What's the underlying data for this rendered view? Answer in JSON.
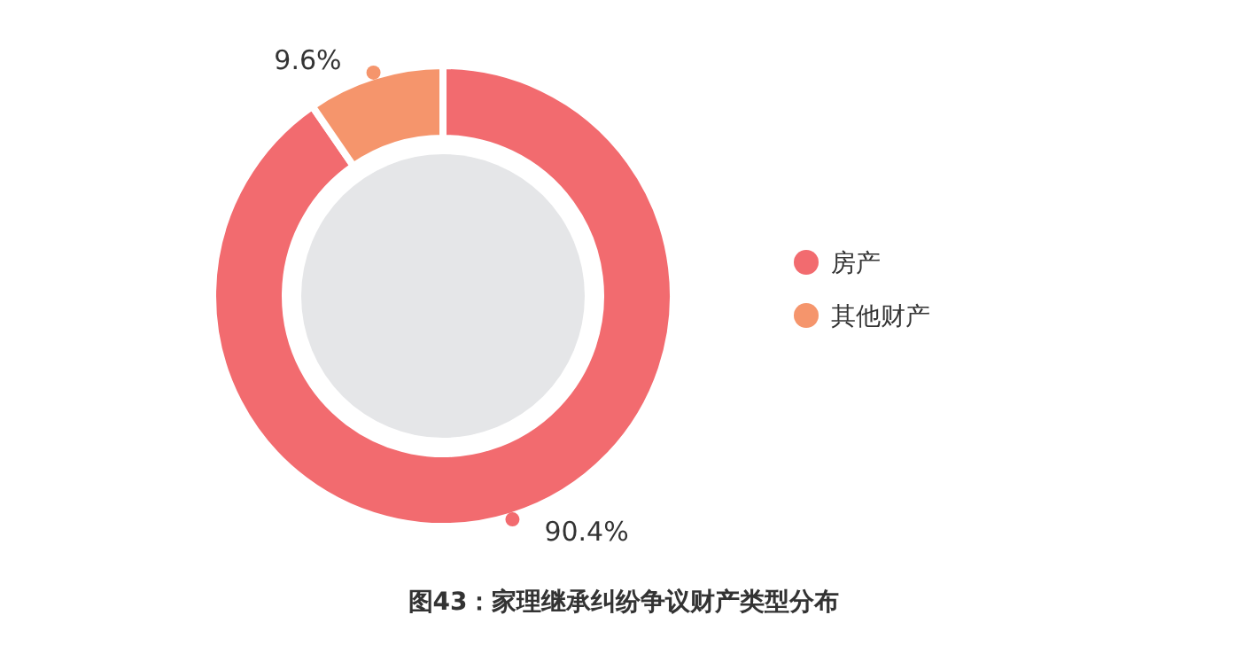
{
  "chart_data": {
    "type": "donut",
    "title": "图43：家理继承纠纷争议财产类型分布",
    "categories": [
      "房产",
      "其他财产"
    ],
    "values": [
      90.4,
      9.6
    ],
    "colors": [
      "#f26b6f",
      "#f5956c"
    ],
    "value_labels": [
      "90.4%",
      "9.6%"
    ],
    "legend": "right"
  }
}
